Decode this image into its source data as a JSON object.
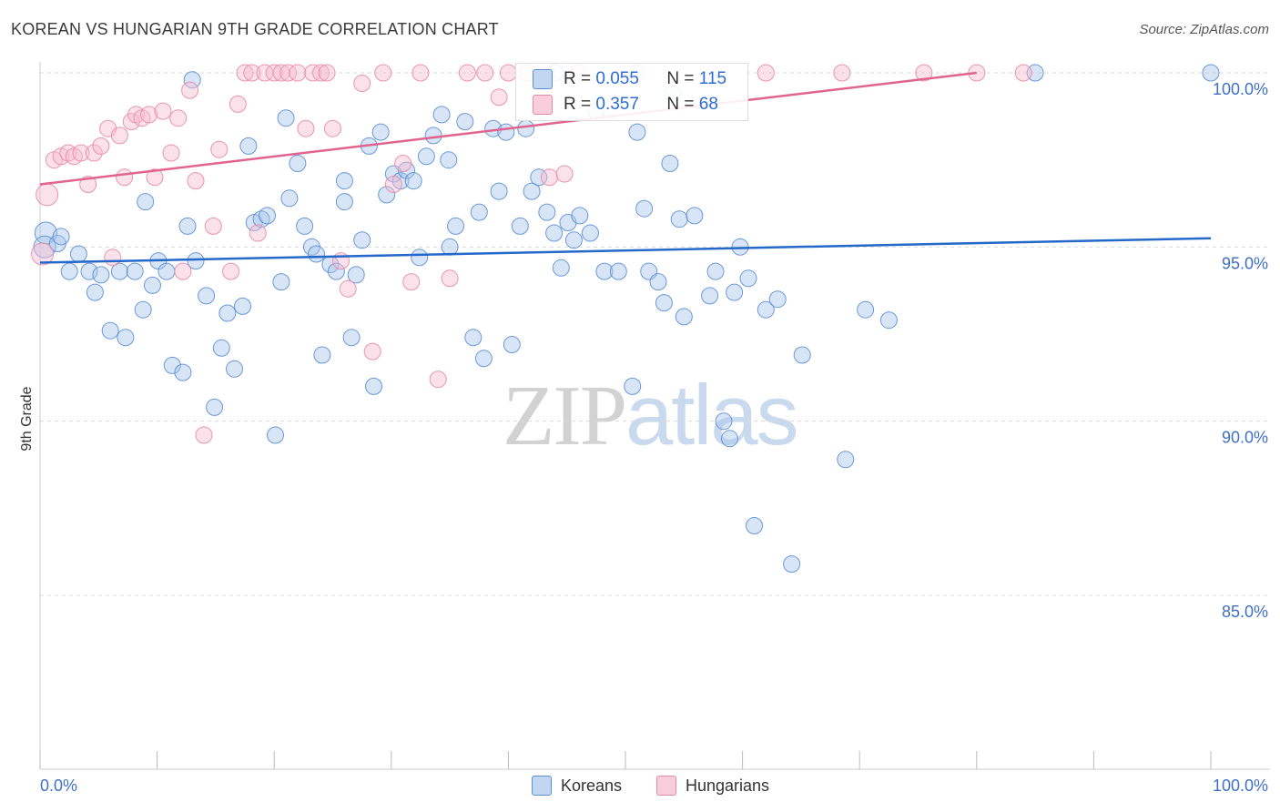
{
  "header": {
    "title": "KOREAN VS HUNGARIAN 9TH GRADE CORRELATION CHART",
    "source": "Source: ZipAtlas.com"
  },
  "watermark": {
    "zip": "ZIP",
    "atlas": "atlas"
  },
  "legend_top": {
    "rows": [
      {
        "r_label": "R =",
        "r_value": "0.055",
        "n_label": "N =",
        "n_value": "115"
      },
      {
        "r_label": "R =",
        "r_value": "0.357",
        "n_label": "N =",
        "n_value": "68"
      }
    ]
  },
  "legend_bottom": {
    "items": [
      {
        "label": "Koreans"
      },
      {
        "label": "Hungarians"
      }
    ]
  },
  "colors": {
    "koreans_fill": "#a9c6ec",
    "koreans_stroke": "#5b8fd6",
    "koreans_line": "#2469c9",
    "hungarians_fill": "#f6bcd0",
    "hungarians_stroke": "#e889a9",
    "hungarians_line": "#e0648f",
    "axis_text": "#3f6fc5",
    "grid": "#d9d9d9"
  },
  "chart_data": {
    "type": "scatter",
    "title": "KOREAN VS HUNGARIAN 9TH GRADE CORRELATION CHART",
    "xlabel": "",
    "ylabel": "9th Grade",
    "xlim": [
      0,
      100
    ],
    "ylim": [
      80.5,
      101.0
    ],
    "x_tick_labels": [
      "0.0%",
      "100.0%"
    ],
    "y_ticks": [
      85,
      90,
      95,
      100
    ],
    "y_tick_labels": [
      "85.0%",
      "90.0%",
      "95.0%",
      "100.0%"
    ],
    "grid": true,
    "legend_position": "bottom",
    "series": [
      {
        "name": "Koreans",
        "r": 0.055,
        "n": 115,
        "trend": {
          "x": [
            0,
            100
          ],
          "y": [
            94.55,
            95.25
          ]
        },
        "points": [
          [
            0.5,
            95.4
          ],
          [
            0.4,
            95.0
          ],
          [
            1.5,
            95.1
          ],
          [
            1.8,
            95.3
          ],
          [
            2.5,
            94.3
          ],
          [
            3.3,
            94.8
          ],
          [
            4.2,
            94.3
          ],
          [
            4.7,
            93.7
          ],
          [
            5.2,
            94.2
          ],
          [
            6.0,
            92.6
          ],
          [
            6.8,
            94.3
          ],
          [
            7.3,
            92.4
          ],
          [
            8.1,
            94.3
          ],
          [
            8.8,
            93.2
          ],
          [
            9.6,
            93.9
          ],
          [
            10.1,
            94.6
          ],
          [
            10.8,
            94.3
          ],
          [
            11.3,
            91.6
          ],
          [
            12.2,
            91.4
          ],
          [
            12.6,
            95.6
          ],
          [
            13.3,
            94.6
          ],
          [
            14.2,
            93.6
          ],
          [
            14.9,
            90.4
          ],
          [
            15.5,
            92.1
          ],
          [
            16.0,
            93.1
          ],
          [
            16.6,
            91.5
          ],
          [
            17.3,
            93.3
          ],
          [
            17.8,
            97.9
          ],
          [
            18.3,
            95.7
          ],
          [
            18.9,
            95.8
          ],
          [
            19.4,
            95.9
          ],
          [
            20.1,
            89.6
          ],
          [
            20.6,
            94.0
          ],
          [
            21.3,
            96.4
          ],
          [
            22.0,
            97.4
          ],
          [
            22.6,
            95.6
          ],
          [
            23.2,
            95.0
          ],
          [
            23.6,
            94.8
          ],
          [
            24.1,
            91.9
          ],
          [
            24.8,
            94.5
          ],
          [
            25.3,
            94.3
          ],
          [
            26.0,
            96.9
          ],
          [
            26.6,
            92.4
          ],
          [
            27.0,
            94.2
          ],
          [
            27.5,
            95.2
          ],
          [
            28.1,
            97.9
          ],
          [
            28.5,
            91.0
          ],
          [
            29.1,
            98.3
          ],
          [
            29.6,
            96.5
          ],
          [
            30.2,
            97.1
          ],
          [
            30.8,
            96.9
          ],
          [
            31.3,
            97.2
          ],
          [
            31.9,
            96.9
          ],
          [
            32.4,
            94.7
          ],
          [
            33.0,
            97.6
          ],
          [
            33.6,
            98.2
          ],
          [
            34.3,
            98.8
          ],
          [
            34.9,
            97.5
          ],
          [
            35.5,
            95.6
          ],
          [
            36.3,
            98.6
          ],
          [
            37.0,
            92.4
          ],
          [
            37.5,
            96.0
          ],
          [
            37.9,
            91.8
          ],
          [
            38.7,
            98.4
          ],
          [
            39.2,
            96.6
          ],
          [
            39.8,
            98.3
          ],
          [
            40.3,
            92.2
          ],
          [
            41.0,
            95.6
          ],
          [
            41.5,
            98.4
          ],
          [
            42.0,
            96.6
          ],
          [
            42.6,
            97.0
          ],
          [
            43.3,
            96.0
          ],
          [
            43.9,
            95.4
          ],
          [
            44.5,
            94.4
          ],
          [
            45.1,
            95.7
          ],
          [
            45.6,
            95.2
          ],
          [
            46.1,
            95.9
          ],
          [
            47.0,
            95.4
          ],
          [
            48.2,
            94.3
          ],
          [
            49.4,
            94.3
          ],
          [
            50.6,
            91.0
          ],
          [
            51.0,
            98.3
          ],
          [
            51.6,
            96.1
          ],
          [
            52.0,
            94.3
          ],
          [
            52.8,
            94.0
          ],
          [
            53.3,
            93.4
          ],
          [
            53.8,
            97.4
          ],
          [
            54.6,
            95.8
          ],
          [
            55.0,
            93.0
          ],
          [
            55.9,
            95.9
          ],
          [
            57.2,
            93.6
          ],
          [
            57.7,
            94.3
          ],
          [
            58.4,
            90.0
          ],
          [
            58.9,
            89.5
          ],
          [
            59.3,
            93.7
          ],
          [
            59.8,
            95.0
          ],
          [
            60.5,
            94.1
          ],
          [
            61.0,
            87.0
          ],
          [
            62.0,
            93.2
          ],
          [
            63.0,
            93.5
          ],
          [
            64.2,
            85.9
          ],
          [
            65.1,
            91.9
          ],
          [
            68.8,
            88.9
          ],
          [
            70.5,
            93.2
          ],
          [
            72.5,
            92.9
          ],
          [
            9.0,
            96.3
          ],
          [
            47.5,
            98.9
          ],
          [
            13.0,
            99.8
          ],
          [
            21.0,
            98.7
          ],
          [
            44.0,
            100.0
          ],
          [
            85.0,
            100.0
          ],
          [
            100.0,
            100.0
          ],
          [
            54.0,
            99.4
          ],
          [
            35.0,
            95.0
          ],
          [
            26.0,
            96.3
          ]
        ]
      },
      {
        "name": "Hungarians",
        "r": 0.357,
        "n": 68,
        "trend": {
          "x": [
            0,
            80
          ],
          "y": [
            96.8,
            100.0
          ]
        },
        "points": [
          [
            0.2,
            94.8
          ],
          [
            0.6,
            96.5
          ],
          [
            1.2,
            97.5
          ],
          [
            1.8,
            97.6
          ],
          [
            2.4,
            97.7
          ],
          [
            2.9,
            97.6
          ],
          [
            3.5,
            97.7
          ],
          [
            4.1,
            96.8
          ],
          [
            4.6,
            97.7
          ],
          [
            5.2,
            97.9
          ],
          [
            5.8,
            98.4
          ],
          [
            6.2,
            94.7
          ],
          [
            6.8,
            98.2
          ],
          [
            7.2,
            97.0
          ],
          [
            7.8,
            98.6
          ],
          [
            8.2,
            98.8
          ],
          [
            8.7,
            98.7
          ],
          [
            9.3,
            98.8
          ],
          [
            9.8,
            97.0
          ],
          [
            10.5,
            98.9
          ],
          [
            11.2,
            97.7
          ],
          [
            11.8,
            98.7
          ],
          [
            12.2,
            94.3
          ],
          [
            12.8,
            99.5
          ],
          [
            13.3,
            96.9
          ],
          [
            14.0,
            89.6
          ],
          [
            14.8,
            95.6
          ],
          [
            15.3,
            97.8
          ],
          [
            16.3,
            94.3
          ],
          [
            16.9,
            99.1
          ],
          [
            17.5,
            100.0
          ],
          [
            18.1,
            100.0
          ],
          [
            18.6,
            95.4
          ],
          [
            19.2,
            100.0
          ],
          [
            20.0,
            100.0
          ],
          [
            20.6,
            100.0
          ],
          [
            21.2,
            100.0
          ],
          [
            22.0,
            100.0
          ],
          [
            22.7,
            98.4
          ],
          [
            23.3,
            100.0
          ],
          [
            24.0,
            100.0
          ],
          [
            24.5,
            100.0
          ],
          [
            25.0,
            98.4
          ],
          [
            25.7,
            94.6
          ],
          [
            26.3,
            93.8
          ],
          [
            27.5,
            99.7
          ],
          [
            28.4,
            92.0
          ],
          [
            29.3,
            100.0
          ],
          [
            30.2,
            96.8
          ],
          [
            31.0,
            97.4
          ],
          [
            31.7,
            94.0
          ],
          [
            32.5,
            100.0
          ],
          [
            34.0,
            91.2
          ],
          [
            35.0,
            94.1
          ],
          [
            36.5,
            100.0
          ],
          [
            38.0,
            100.0
          ],
          [
            39.2,
            99.3
          ],
          [
            40.0,
            100.0
          ],
          [
            41.6,
            100.0
          ],
          [
            43.5,
            97.0
          ],
          [
            44.8,
            97.1
          ],
          [
            46.0,
            100.0
          ],
          [
            51.0,
            100.0
          ],
          [
            62.0,
            100.0
          ],
          [
            68.5,
            100.0
          ],
          [
            75.5,
            100.0
          ],
          [
            80.0,
            100.0
          ],
          [
            84.0,
            100.0
          ]
        ]
      }
    ]
  }
}
